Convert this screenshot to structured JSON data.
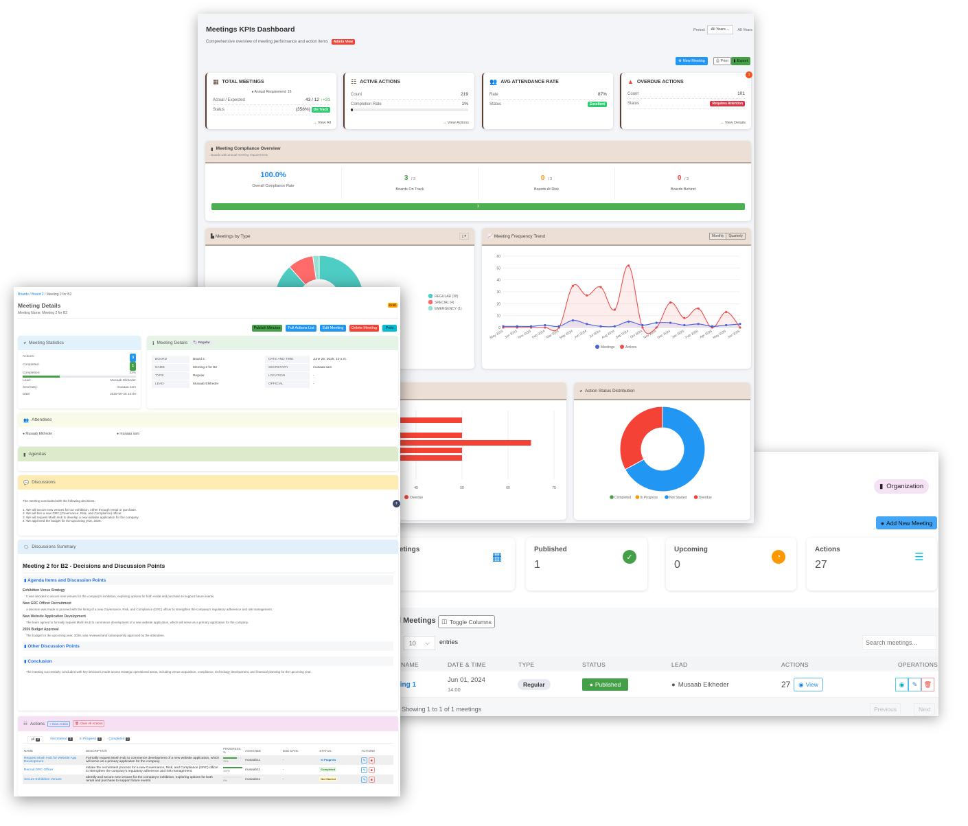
{
  "dashboard": {
    "title": "Meetings KPIs Dashboard",
    "subtitle": "Comprehensive overview of meeting performance and action items",
    "admin_badge": "Admin View",
    "period_label": "Period:",
    "period_value": "All Years",
    "period_text": "All Years",
    "new_meeting": "New Meeting",
    "print": "Print",
    "export": "Export",
    "notification_count": "1",
    "kpis": {
      "total": {
        "title": "TOTAL MEETINGS",
        "requirement": "Annual Requirement: 16",
        "actual_label": "Actual / Expected",
        "actual_value": "43 / 12",
        "delta": "+31",
        "status_label": "Status",
        "status_pct": "(358%)",
        "status_badge": "On Track",
        "link": "View All"
      },
      "active": {
        "title": "ACTIVE ACTIONS",
        "count_label": "Count",
        "count": "219",
        "rate_label": "Completion Rate",
        "rate": "1%",
        "progress": 1,
        "link": "View Actions"
      },
      "attendance": {
        "title": "AVG ATTENDANCE RATE",
        "rate_label": "Rate",
        "rate": "87%",
        "status_label": "Status",
        "status_badge": "Excellent"
      },
      "overdue": {
        "title": "OVERDUE ACTIONS",
        "count_label": "Count",
        "count": "101",
        "status_label": "Status",
        "status_badge": "Requires Attention",
        "link": "View Details"
      }
    },
    "compliance": {
      "title": "Meeting Compliance Overview",
      "subtitle": "Boards with annual meeting requirements",
      "rate": "100.0%",
      "rate_label": "Overall Compliance Rate",
      "on_track": "3",
      "on_track_total": "/ 3",
      "on_track_label": "Boards On Track",
      "at_risk": "0",
      "at_risk_total": "/ 3",
      "at_risk_label": "Boards At Risk",
      "behind": "0",
      "behind_total": "/ 3",
      "behind_label": "Boards Behind",
      "bar_label": "3",
      "bar_fill": 100
    },
    "type_chart_title": "Meetings by Type",
    "trend_title": "Meeting Frequency Trend",
    "trend_monthly": "Monthly",
    "trend_quarterly": "Quarterly",
    "status_title": "Action Status Distribution"
  },
  "chart_data": [
    {
      "type": "pie",
      "title": "Meetings by Type",
      "donut": true,
      "categories": [
        "REGULAR (38)",
        "SPECIAL (4)",
        "EMERGENCY (1)"
      ],
      "values": [
        38,
        4,
        1
      ],
      "colors": [
        "#4ecdc4",
        "#ff6b6b",
        "#95e1d3"
      ],
      "legend": "right"
    },
    {
      "type": "line",
      "title": "Meeting Frequency Trend",
      "x": [
        "May 2023",
        "Jun 2023",
        "Nov 2023",
        "Feb 2024",
        "Mar 2024",
        "May 2024",
        "Jun 2024",
        "Jul 2024",
        "Aug 2024",
        "Sep 2024",
        "Oct 2024",
        "Nov 2024",
        "Dec 2024",
        "Jan 2025",
        "Feb 2025",
        "Apr 2025",
        "May 2025",
        "Jun 2025"
      ],
      "series": [
        {
          "name": "Meetings",
          "color": "#4361d8",
          "values": [
            1,
            1,
            1,
            2,
            1,
            6,
            3,
            1,
            1,
            5,
            2,
            4,
            4,
            2,
            3,
            1,
            2,
            3
          ]
        },
        {
          "name": "Actions",
          "color": "#ef4b4b",
          "values": [
            0,
            0,
            0,
            0,
            0,
            35,
            27,
            34,
            15,
            52,
            0,
            0,
            21,
            8,
            16,
            0,
            13,
            0
          ]
        }
      ],
      "ylim": [
        0,
        60
      ],
      "yticks": [
        0,
        10,
        20,
        30,
        40,
        50,
        60
      ],
      "grid": true,
      "legend": "bottom"
    },
    {
      "type": "bar",
      "orientation": "horizontal",
      "series": [
        {
          "name": "Overdue",
          "color": "#f44336",
          "values": [
            50,
            0,
            50,
            65,
            50,
            50
          ]
        }
      ],
      "xlim": [
        0,
        70
      ],
      "xticks": [
        40,
        50,
        60,
        70
      ],
      "grid": true,
      "legend": "bottom"
    },
    {
      "type": "pie",
      "title": "Action Status Distribution",
      "donut": true,
      "categories": [
        "Completed",
        "In Progress",
        "Not Started",
        "Overdue"
      ],
      "values": [
        0,
        0,
        67,
        33
      ],
      "colors": [
        "#43a047",
        "#ff9800",
        "#2196f3",
        "#f44336"
      ],
      "legend": "bottom"
    }
  ],
  "details": {
    "breadcrumb": [
      "Boards",
      "Board 2",
      "Meeting 2 for B2"
    ],
    "title": "Meeting Details",
    "meeting_name": "Meeting Name: Meeting 2 for B2",
    "status_badge": "Draft",
    "buttons": {
      "publish": "Publish Minutes",
      "actions_list": "Full Actions List",
      "edit": "Edit Meeting",
      "delete": "Delete Meeting",
      "print": "Print"
    },
    "stats": {
      "title": "Meeting Statistics",
      "actions_label": "Actions:",
      "actions": "3",
      "completed_label": "Completed:",
      "completed": "1",
      "completion_label": "Completion:",
      "completion": "33%",
      "completion_value": 33,
      "lead_label": "Lead:",
      "lead": "Musaab Elkheder",
      "secretary_label": "Secretary:",
      "secretary": "musaaa sam",
      "date_label": "Date:",
      "date": "2025-06-25 10:00"
    },
    "info": {
      "title": "Meeting Details",
      "type_badge": "Regular",
      "rows": [
        [
          "BOARD",
          "Board 2",
          "DATE AND TIME",
          "June 25, 2025, 10 a.m."
        ],
        [
          "NAME",
          "Meeting 2 for B2",
          "SECRETARY",
          "musaaa sam"
        ],
        [
          "TYPE",
          "Regular",
          "LOCATION",
          "-"
        ],
        [
          "LEAD",
          "Musaab Elkheder",
          "OFFICIAL",
          "-"
        ]
      ]
    },
    "attendees": {
      "title": "Attendees",
      "list": [
        "Musaab Elkheder",
        "musaaa sam"
      ]
    },
    "agendas": {
      "title": "Agendas"
    },
    "discussions": {
      "title": "Discussions",
      "intro": "The meeting concluded with the following decisions:",
      "items": [
        "1. We will secure new venues for our exhibition, either through rental or purchase.",
        "2. We will hire a new GRC (Governance, Risk, and Compliance) officer.",
        "3. We will request Mosh Hub to develop a new website application for the company.",
        "4. We approved the budget for the upcoming year, 2026."
      ]
    },
    "summary": {
      "title": "Discussions Summary",
      "heading": "Meeting 2 for B2 - Decisions and Discussion Points",
      "agenda_heading": "Agenda Items and Discussion Points",
      "points": [
        {
          "title": "Exhibition Venue Strategy",
          "text": "It was decided to secure new venues for the company's exhibition, exploring options for both rental and purchase to support future events."
        },
        {
          "title": "New GRC Officer Recruitment",
          "text": "A decision was made to proceed with the hiring of a new Governance, Risk, and Compliance (GRC) officer to strengthen the company's regulatory adherence and risk management."
        },
        {
          "title": "New Website Application Development",
          "text": "The team agreed to formally request Mosh Hub to commence development of a new website application, which will serve as a primary application for the company."
        },
        {
          "title": "2026 Budget Approval",
          "text": "The budget for the upcoming year, 2026, was reviewed and subsequently approved by the attendees."
        }
      ],
      "other_heading": "Other Discussion Points",
      "conclusion_heading": "Conclusion",
      "conclusion": "The meeting successfully concluded with key decisions made across strategic operational areas, including venue acquisition, compliance, technology development, and financial planning for the upcoming year."
    },
    "actions": {
      "title": "Actions",
      "new": "+ New Action",
      "clear": "Clear All Actions",
      "tabs": [
        {
          "label": "All",
          "count": "3"
        },
        {
          "label": "Not Started",
          "count": "1"
        },
        {
          "label": "In Progress",
          "count": "1"
        },
        {
          "label": "Completed",
          "count": "1"
        }
      ],
      "columns": [
        "NAME",
        "DESCRIPTION",
        "PROGRESS %",
        "ASSIGNEE",
        "DUE DATE",
        "STATUS",
        "ACTIONS"
      ],
      "rows": [
        {
          "name": "Request Mosh Hub for Website App Development",
          "desc": "Formally request Mosh Hub to commence development of a new website application, which will serve as a primary application for the company.",
          "progress": "70%",
          "pv": 70,
          "assignee": "musaab11",
          "due": "-",
          "status": "In Progress",
          "sbg": "#e3f2fd",
          "sc": "#1565c0"
        },
        {
          "name": "Recruit GRC Officer",
          "desc": "Initiate the recruitment process for a new Governance, Risk, and Compliance (GRC) officer to strengthen the company's regulatory adherence and risk management.",
          "progress": "100%",
          "pv": 100,
          "assignee": "musaab11",
          "due": "-",
          "status": "Completed",
          "sbg": "#e8f5e9",
          "sc": "#2e7d32"
        },
        {
          "name": "Secure Exhibition Venues",
          "desc": "Identify and secure new venues for the company's exhibition, exploring options for both rental and purchase to support future events.",
          "progress": "0%",
          "pv": 0,
          "assignee": "musaab11",
          "due": "-",
          "status": "Not Started",
          "sbg": "#fff8d6",
          "sc": "#6d5d00"
        }
      ]
    }
  },
  "meetings": {
    "org_badge": "Organization",
    "add_new": "Add New Meeting",
    "cards": [
      {
        "label": "Total Meetings"
      },
      {
        "label": "Published",
        "value": "1"
      },
      {
        "label": "Upcoming",
        "value": "0"
      },
      {
        "label": "Actions",
        "value": "27"
      }
    ],
    "table_title": "All Meetings",
    "toggle_columns": "Toggle Columns",
    "page_size": "10",
    "entries": "entries",
    "search_placeholder": "Search meetings...",
    "columns": [
      "NAME",
      "DATE & TIME",
      "TYPE",
      "STATUS",
      "LEAD",
      "ACTIONS",
      "OPERATIONS"
    ],
    "row": {
      "name": "Meeting 1",
      "date": "Jun 01, 2024",
      "time": "14:00",
      "type": "Regular",
      "status": "Published",
      "lead": "Musaab Elkheder",
      "actions": "27",
      "view": "View"
    },
    "footer": "Showing 1 to 1 of 1 meetings",
    "previous": "Previous",
    "next": "Next"
  }
}
